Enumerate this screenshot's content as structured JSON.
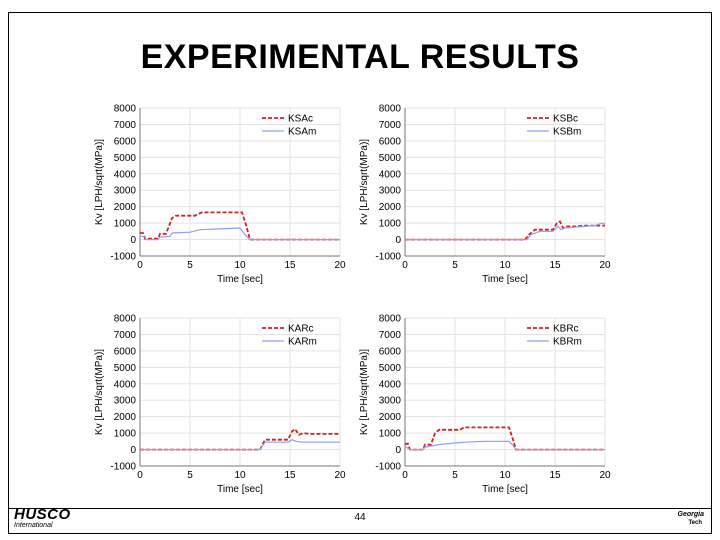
{
  "slide": {
    "title": "EXPERIMENTAL RESULTS",
    "page_number": "44"
  },
  "footer": {
    "logo_left": "HUSCO",
    "logo_left_sub": "International",
    "logo_right_line1": "Georgia",
    "logo_right_line2": "Tech"
  },
  "colors": {
    "commanded": "#d42020",
    "measured": "#8f9ff0"
  },
  "chart_data": [
    {
      "type": "line",
      "xlabel": "Time [sec]",
      "ylabel": "Kv [LPH/sqrt(MPa)]",
      "xlim": [
        0,
        20
      ],
      "ylim": [
        -1000,
        8000
      ],
      "xticks": [
        0,
        5,
        10,
        15,
        20
      ],
      "yticks": [
        -1000,
        0,
        1000,
        2000,
        3000,
        4000,
        5000,
        6000,
        7000,
        8000
      ],
      "grid": true,
      "legend": "top-right",
      "series": [
        {
          "name": "KSAc",
          "style": "dashed",
          "x": [
            0,
            0.3,
            0.5,
            0.6,
            1.8,
            2.0,
            2.6,
            3.2,
            3.6,
            5.5,
            6.0,
            6.2,
            10.2,
            10.6,
            11.0,
            20
          ],
          "y": [
            400,
            400,
            50,
            50,
            50,
            350,
            350,
            1300,
            1450,
            1450,
            1600,
            1650,
            1650,
            900,
            0,
            0
          ]
        },
        {
          "name": "KSAm",
          "style": "solid",
          "x": [
            0,
            0.5,
            0.6,
            1.8,
            2.0,
            3.0,
            3.2,
            5.0,
            6.0,
            8.0,
            10.0,
            10.5,
            11.0,
            20
          ],
          "y": [
            200,
            200,
            0,
            0,
            150,
            200,
            400,
            450,
            600,
            650,
            700,
            300,
            0,
            0
          ]
        }
      ]
    },
    {
      "type": "line",
      "xlabel": "Time [sec]",
      "ylabel": "Kv [LPH/sqrt(MPa)]",
      "xlim": [
        0,
        20
      ],
      "ylim": [
        -1000,
        8000
      ],
      "xticks": [
        0,
        5,
        10,
        15,
        20
      ],
      "yticks": [
        -1000,
        0,
        1000,
        2000,
        3000,
        4000,
        5000,
        6000,
        7000,
        8000
      ],
      "grid": true,
      "legend": "top-right",
      "series": [
        {
          "name": "KSBc",
          "style": "dashed",
          "x": [
            0,
            12.0,
            12.4,
            13.0,
            14.8,
            15.2,
            15.5,
            15.8,
            16.2,
            17.0,
            18.0,
            19.0,
            20
          ],
          "y": [
            0,
            0,
            300,
            600,
            600,
            1000,
            1100,
            700,
            800,
            800,
            850,
            850,
            850
          ]
        },
        {
          "name": "KSBm",
          "style": "solid",
          "x": [
            0,
            12.2,
            12.6,
            13.5,
            14.8,
            15.3,
            15.6,
            16.0,
            17.0,
            18.0,
            19.0,
            19.7,
            20
          ],
          "y": [
            0,
            0,
            300,
            500,
            500,
            800,
            600,
            700,
            750,
            800,
            850,
            1000,
            950
          ]
        }
      ]
    },
    {
      "type": "line",
      "xlabel": "Time [sec]",
      "ylabel": "Kv [LPH/sqrt(MPa)]",
      "xlim": [
        0,
        20
      ],
      "ylim": [
        -1000,
        8000
      ],
      "xticks": [
        0,
        5,
        10,
        15,
        20
      ],
      "yticks": [
        -1000,
        0,
        1000,
        2000,
        3000,
        4000,
        5000,
        6000,
        7000,
        8000
      ],
      "grid": true,
      "legend": "top-right",
      "series": [
        {
          "name": "KARc",
          "style": "dashed",
          "x": [
            0,
            12.0,
            12.5,
            14.8,
            15.2,
            15.5,
            15.9,
            16.3,
            17.0,
            18.0,
            20
          ],
          "y": [
            0,
            0,
            600,
            600,
            1100,
            1250,
            900,
            1000,
            950,
            950,
            950
          ]
        },
        {
          "name": "KARm",
          "style": "solid",
          "x": [
            0,
            12.0,
            12.5,
            14.8,
            15.2,
            15.6,
            16.2,
            17.0,
            20
          ],
          "y": [
            0,
            0,
            450,
            450,
            600,
            500,
            450,
            450,
            450
          ]
        }
      ]
    },
    {
      "type": "line",
      "xlabel": "Time [sec]",
      "ylabel": "Kv [LPH/sqrt(MPa)]",
      "xlim": [
        0,
        20
      ],
      "ylim": [
        -1000,
        8000
      ],
      "xticks": [
        0,
        5,
        10,
        15,
        20
      ],
      "yticks": [
        -1000,
        0,
        1000,
        2000,
        3000,
        4000,
        5000,
        6000,
        7000,
        8000
      ],
      "grid": true,
      "legend": "top-right",
      "series": [
        {
          "name": "KBRc",
          "style": "dashed",
          "x": [
            0,
            0.3,
            0.5,
            1.8,
            2.0,
            2.6,
            3.0,
            3.4,
            5.5,
            5.9,
            6.2,
            10.4,
            10.8,
            11.1,
            20
          ],
          "y": [
            350,
            350,
            0,
            0,
            300,
            300,
            1000,
            1200,
            1200,
            1350,
            1350,
            1350,
            600,
            0,
            0
          ]
        },
        {
          "name": "KBRm",
          "style": "solid",
          "x": [
            0,
            0.5,
            1.8,
            2.0,
            3.0,
            3.4,
            5.0,
            6.0,
            8.0,
            10.4,
            10.8,
            11.1,
            20
          ],
          "y": [
            200,
            0,
            0,
            150,
            250,
            300,
            400,
            450,
            500,
            500,
            250,
            0,
            0
          ]
        }
      ]
    }
  ]
}
